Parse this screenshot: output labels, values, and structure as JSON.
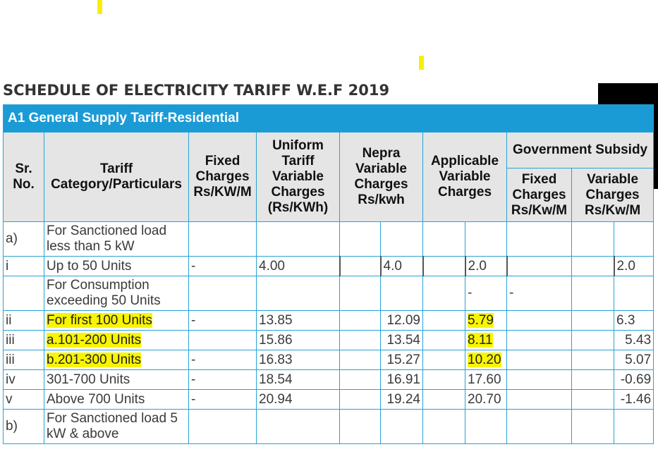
{
  "title": "SCHEDULE OF ELECTRICITY TARIFF W.E.F 2019",
  "banner": "A1 General Supply Tariff-Residential",
  "headers": {
    "sr_no": "Sr. No.",
    "category": "Tariff Category/Particulars",
    "fixed_charges": "Fixed Charges Rs/KW/M",
    "uniform": "Uniform Tariff Variable Charges (Rs/KWh)",
    "nepra": "Nepra Variable Charges Rs/kwh",
    "applicable": "Applicable Variable Charges",
    "govt_subsidy": "Government Subsidy",
    "subsidy_fixed": "Fixed Charges Rs/Kw/M",
    "subsidy_variable": "Variable Charges Rs/Kw/M"
  },
  "rows": [
    {
      "sr": "a)",
      "category": "For Sanctioned load less than 5 kW",
      "fixed": "",
      "uniform": "",
      "nepra": "",
      "applicable": "",
      "sub_fixed": "",
      "sub_var": ""
    },
    {
      "sr": "i",
      "category": "Up to 50 Units",
      "fixed": "-",
      "uniform": "4.00",
      "nepra": "4.0",
      "applicable": "2.0",
      "sub_fixed": "",
      "sub_var": "2.0"
    },
    {
      "sr": "",
      "category": "For Consumption exceeding 50 Units",
      "fixed": "",
      "uniform": "",
      "nepra": "",
      "applicable": "-",
      "sub_fixed": "-",
      "sub_var": ""
    },
    {
      "sr": "ii",
      "category": "For first 100 Units",
      "fixed": "-",
      "uniform": "13.85",
      "nepra": "12.09",
      "applicable": "5.79",
      "sub_fixed": "",
      "sub_var": "6.3"
    },
    {
      "sr": "iii",
      "category": "a.101-200 Units",
      "fixed": "",
      "uniform": "15.86",
      "nepra": "13.54",
      "applicable": "8.11",
      "sub_fixed": "",
      "sub_var": "5.43"
    },
    {
      "sr": "iii",
      "category": "b.201-300 Units",
      "fixed": "-",
      "uniform": "16.83",
      "nepra": "15.27",
      "applicable": "10.20",
      "sub_fixed": "",
      "sub_var": "5.07"
    },
    {
      "sr": "iv",
      "category": "301-700 Units",
      "fixed": "-",
      "uniform": "18.54",
      "nepra": "16.91",
      "applicable": "17.60",
      "sub_fixed": "",
      "sub_var": "-0.69"
    },
    {
      "sr": "v",
      "category": "Above 700 Units",
      "fixed": "-",
      "uniform": "20.94",
      "nepra": "19.24",
      "applicable": "20.70",
      "sub_fixed": "",
      "sub_var": "-1.46"
    },
    {
      "sr": "b)",
      "category": "For Sanctioned load 5 kW & above",
      "fixed": "",
      "uniform": "",
      "nepra": "",
      "applicable": "",
      "sub_fixed": "",
      "sub_var": ""
    }
  ],
  "colors": {
    "banner": "#1b9bd6",
    "header_bg": "#e5e5e5",
    "highlight": "#f9f500",
    "border": "#27a2d6"
  }
}
